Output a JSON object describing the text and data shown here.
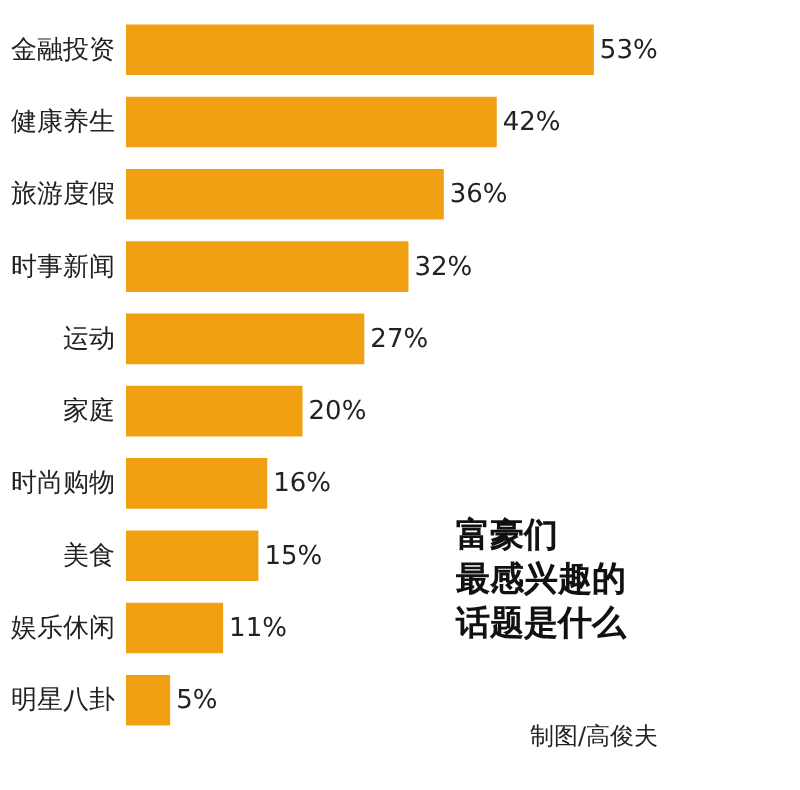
{
  "chart_data": {
    "type": "bar",
    "orientation": "horizontal",
    "title": "富豪们最感兴趣的话题是什么",
    "categories": [
      "金融投资",
      "健康养生",
      "旅游度假",
      "时事新闻",
      "运动",
      "家庭",
      "时尚购物",
      "美食",
      "娱乐休闲",
      "明星八卦"
    ],
    "values": [
      53,
      42,
      36,
      32,
      27,
      20,
      16,
      15,
      11,
      5
    ],
    "value_labels": [
      "53%",
      "42%",
      "36%",
      "32%",
      "27%",
      "20%",
      "16%",
      "15%",
      "11%",
      "5%"
    ],
    "color": "#f0a010",
    "annotations": [
      "制图/高俊夫"
    ]
  }
}
